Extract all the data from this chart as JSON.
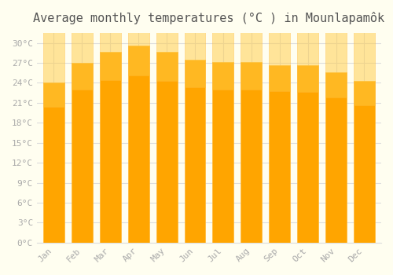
{
  "months": [
    "Jan",
    "Feb",
    "Mar",
    "Apr",
    "May",
    "Jun",
    "Jul",
    "Aug",
    "Sep",
    "Oct",
    "Nov",
    "Dec"
  ],
  "values": [
    24.0,
    27.0,
    28.7,
    29.6,
    28.6,
    27.5,
    27.1,
    27.1,
    26.7,
    26.6,
    25.6,
    24.3
  ],
  "bar_color": "#FFA500",
  "bar_edge_color": "#FFB733",
  "background_color": "#FFFEF0",
  "grid_color": "#DDDDDD",
  "title": "Average monthly temperatures (°C ) in Mounlapamôk",
  "title_fontsize": 11,
  "ylabel_ticks": [
    0,
    3,
    6,
    9,
    12,
    15,
    18,
    21,
    24,
    27,
    30
  ],
  "ylim": [
    0,
    31.5
  ],
  "tick_color": "#AAAAAA",
  "text_color": "#AAAAAA",
  "title_color": "#555555"
}
